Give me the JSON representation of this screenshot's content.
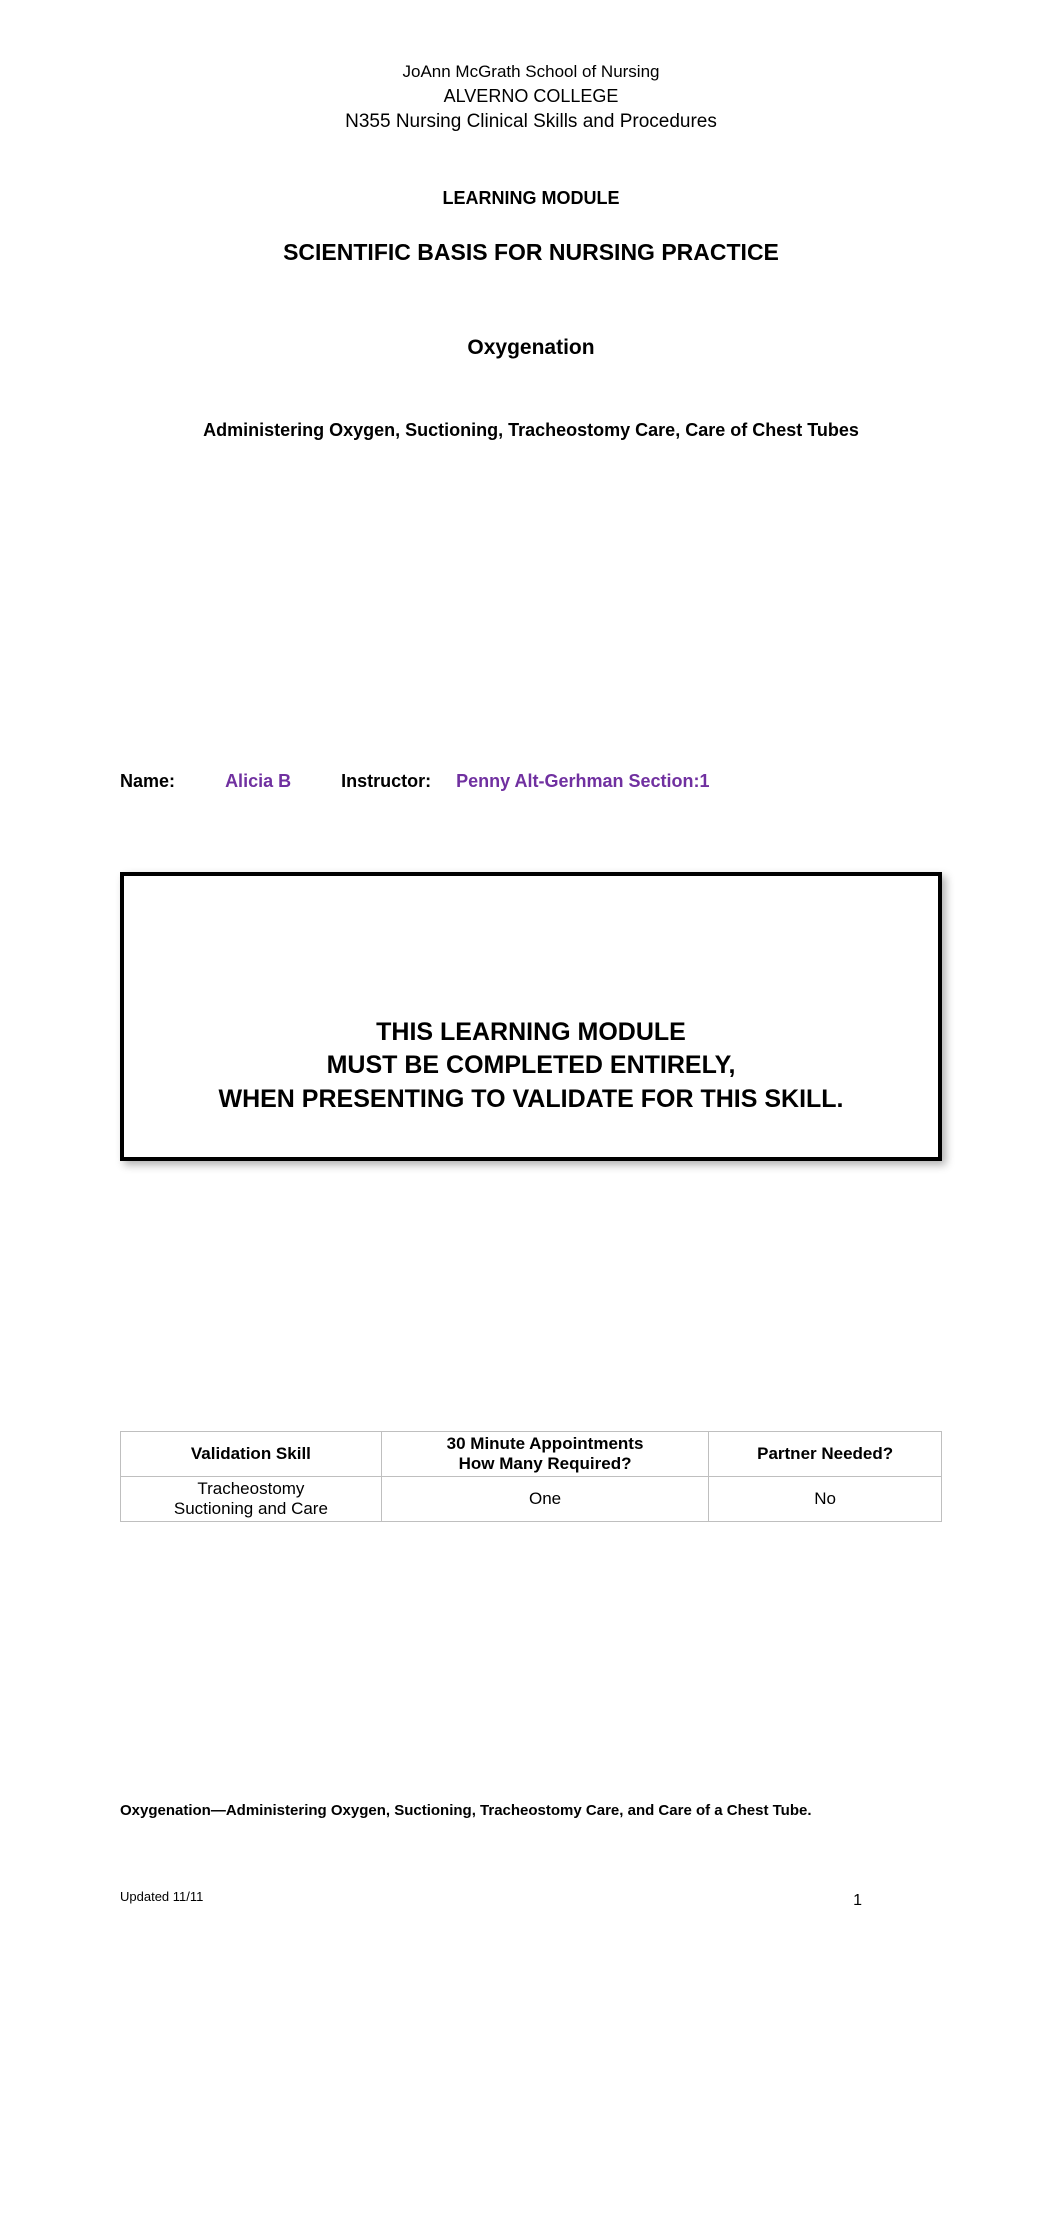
{
  "header": {
    "school": "JoAnn McGrath School of Nursing",
    "college": "ALVERNO COLLEGE",
    "course": "N355 Nursing Clinical Skills and Procedures"
  },
  "module": {
    "label": "LEARNING MODULE",
    "title": "SCIENTIFIC BASIS FOR NURSING PRACTICE",
    "topic": "Oxygenation",
    "subtopics": "Administering Oxygen, Suctioning, Tracheostomy Care, Care of Chest Tubes"
  },
  "student": {
    "name_label": "Name:",
    "name_value": "Alicia B",
    "instructor_label": "Instructor:",
    "instructor_value": "Penny Alt-Gerhman Section:1"
  },
  "notice": {
    "line1": "THIS LEARNING MODULE",
    "line2": "MUST BE COMPLETED ENTIRELY,",
    "line3": "WHEN PRESENTING TO VALIDATE FOR THIS SKILL."
  },
  "validation_table": {
    "headers": {
      "col1": "Validation Skill",
      "col2_line1": "30 Minute Appointments",
      "col2_line2": "How Many Required?",
      "col3": "Partner Needed?"
    },
    "row": {
      "skill_line1": "Tracheostomy",
      "skill_line2": "Suctioning and Care",
      "appointments": "One",
      "partner": "No"
    }
  },
  "footer": {
    "summary": "Oxygenation—Administering Oxygen, Suctioning, Tracheostomy Care, and Care of a Chest Tube.",
    "page_number": "1",
    "updated": "Updated 11/11"
  },
  "colors": {
    "text": "#000000",
    "student_value": "#7030a0",
    "table_border": "#bfbfbf",
    "background": "#ffffff"
  }
}
